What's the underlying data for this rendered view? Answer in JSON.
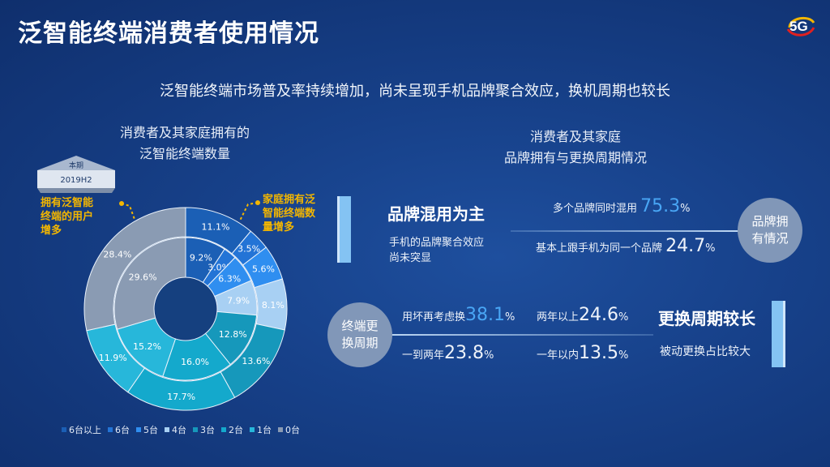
{
  "title": "泛智能终端消费者使用情况",
  "logo_text": "5G",
  "subtitle": "泛智能终端市场普及率持续增加，尚未呈现手机品牌聚合效应，换机周期也较长",
  "left_header": [
    "消费者及其家庭拥有的",
    "泛智能终端数量"
  ],
  "right_header": [
    "消费者及其家庭",
    "品牌拥有与更换周期情况"
  ],
  "period_badge": [
    "本期",
    "2019H2"
  ],
  "annotation_left": [
    "拥有泛智能",
    "终端的用户",
    "增多"
  ],
  "annotation_right": [
    "家庭拥有泛",
    "智能终端数",
    "量增多"
  ],
  "colors": {
    "c6plus": "#1b5fb5",
    "c6": "#2374d6",
    "c5": "#2f8ef0",
    "c4": "#a8d0f3",
    "c3": "#1698bb",
    "c2": "#14a9cc",
    "c1": "#27b7da",
    "c0": "#8a9bb3",
    "accent_blue": "#49a6f5",
    "gold": "#f3b600"
  },
  "chart_data": {
    "type": "pie",
    "legend_position": "bottom",
    "categories": [
      "6台以上",
      "6台",
      "5台",
      "4台",
      "3台",
      "2台",
      "1台",
      "0台"
    ],
    "series": [
      {
        "ring": "outer",
        "values": [
          11.1,
          3.5,
          5.6,
          8.1,
          13.6,
          17.7,
          11.9,
          28.4
        ]
      },
      {
        "ring": "inner",
        "values": [
          9.2,
          3.0,
          6.3,
          7.9,
          12.8,
          16.0,
          15.2,
          29.6
        ]
      }
    ],
    "value_suffix": "%"
  },
  "brand": {
    "heading": "品牌混用为主",
    "desc": [
      "手机的品牌聚合效应",
      "尚未突显"
    ],
    "circle": [
      "品牌拥",
      "有情况"
    ],
    "stat1_label": "多个品牌同时混用",
    "stat1_value": "75.3",
    "stat2_label": "基本上跟手机为同一个品牌",
    "stat2_value": "24.7",
    "pct": "%"
  },
  "cycle": {
    "heading": "更换周期较长",
    "desc": "被动更换占比较大",
    "circle": [
      "终端更",
      "换周期"
    ],
    "stat1_label": "用坏再考虑换",
    "stat1_value": "38.1",
    "stat2_label": "两年以上",
    "stat2_value": "24.6",
    "stat3_label": "一到两年",
    "stat3_value": "23.8",
    "stat4_label": "一年以内",
    "stat4_value": "13.5",
    "pct": "%"
  }
}
